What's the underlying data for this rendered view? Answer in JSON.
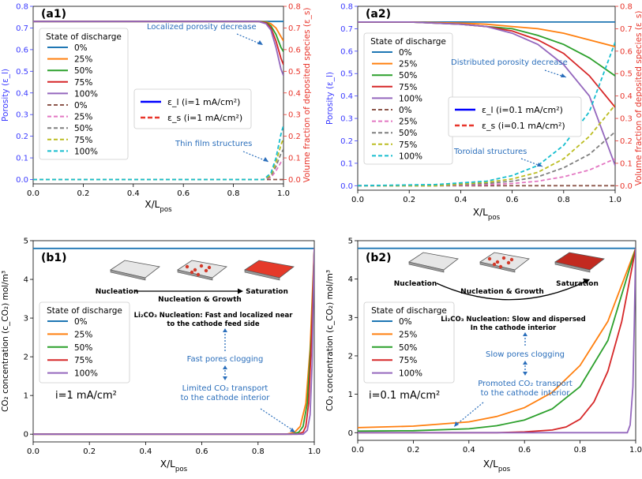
{
  "figure": {
    "x_label_main": "X/L",
    "x_label_sub": "pos",
    "x_ticks": [
      "0.0",
      "0.2",
      "0.4",
      "0.6",
      "0.8",
      "1.0"
    ]
  },
  "chart_data": [
    {
      "id": "a1",
      "type": "line",
      "panel_label": "(a1)",
      "xlim": [
        0,
        1
      ],
      "ylim": [
        -0.02,
        0.8
      ],
      "y2lim": [
        -0.02,
        0.8
      ],
      "y_ticks": [
        "0.0",
        "0.1",
        "0.2",
        "0.3",
        "0.4",
        "0.5",
        "0.6",
        "0.7",
        "0.8"
      ],
      "y2_ticks": [
        "0.0",
        "0.1",
        "0.2",
        "0.3",
        "0.4",
        "0.5",
        "0.6",
        "0.7",
        "0.8"
      ],
      "ylabel": "Porosity (ε_l)",
      "y2label": "Volume fraction of deposited species (ε_s)",
      "legend_title": "State of discharge",
      "legend_labels": [
        "0%",
        "25%",
        "50%",
        "75%",
        "100%",
        "0%",
        "25%",
        "50%",
        "75%",
        "100%"
      ],
      "style_legend": [
        "ε_l (i=1 mA/cm²)",
        "ε_s (i=1 mA/cm²)"
      ],
      "annotations": [
        "Localized porosity decrease",
        "Thin film structures"
      ],
      "series": [
        {
          "name": "0%",
          "style": "solid",
          "color": "#1f77b4",
          "x": [
            0,
            1
          ],
          "y": [
            0.73,
            0.73
          ]
        },
        {
          "name": "25%",
          "style": "solid",
          "color": "#ff7f0e",
          "x": [
            0,
            0.9,
            0.93,
            0.95,
            0.97,
            0.99,
            1.0
          ],
          "y": [
            0.73,
            0.73,
            0.728,
            0.72,
            0.7,
            0.66,
            0.64
          ]
        },
        {
          "name": "50%",
          "style": "solid",
          "color": "#2ca02c",
          "x": [
            0,
            0.9,
            0.93,
            0.95,
            0.97,
            0.99,
            1.0
          ],
          "y": [
            0.73,
            0.73,
            0.726,
            0.71,
            0.67,
            0.61,
            0.59
          ]
        },
        {
          "name": "75%",
          "style": "solid",
          "color": "#d62728",
          "x": [
            0,
            0.9,
            0.93,
            0.95,
            0.97,
            0.99,
            1.0
          ],
          "y": [
            0.73,
            0.73,
            0.724,
            0.7,
            0.64,
            0.56,
            0.53
          ]
        },
        {
          "name": "100%",
          "style": "solid",
          "color": "#9467bd",
          "x": [
            0,
            0.9,
            0.93,
            0.95,
            0.97,
            0.99,
            1.0
          ],
          "y": [
            0.73,
            0.73,
            0.72,
            0.69,
            0.61,
            0.51,
            0.48
          ]
        },
        {
          "name": "0%",
          "style": "dashed",
          "color": "#8c564b",
          "x": [
            0,
            1
          ],
          "y": [
            0.0,
            0.0
          ]
        },
        {
          "name": "25%",
          "style": "dashed",
          "color": "#e377c2",
          "x": [
            0,
            0.92,
            0.95,
            0.97,
            0.99,
            1.0
          ],
          "y": [
            0.0,
            0.0,
            0.01,
            0.04,
            0.08,
            0.09
          ]
        },
        {
          "name": "50%",
          "style": "dashed",
          "color": "#7f7f7f",
          "x": [
            0,
            0.92,
            0.95,
            0.97,
            0.99,
            1.0
          ],
          "y": [
            0.0,
            0.0,
            0.015,
            0.06,
            0.12,
            0.14
          ]
        },
        {
          "name": "75%",
          "style": "dashed",
          "color": "#bcbd22",
          "x": [
            0,
            0.92,
            0.95,
            0.97,
            0.99,
            1.0
          ],
          "y": [
            0.0,
            0.0,
            0.02,
            0.08,
            0.16,
            0.19
          ]
        },
        {
          "name": "100%",
          "style": "dashed",
          "color": "#17becf",
          "x": [
            0,
            0.92,
            0.95,
            0.97,
            0.99,
            1.0
          ],
          "y": [
            0.0,
            0.0,
            0.03,
            0.1,
            0.21,
            0.25
          ]
        }
      ]
    },
    {
      "id": "a2",
      "type": "line",
      "panel_label": "(a2)",
      "xlim": [
        0,
        1
      ],
      "ylim": [
        -0.02,
        0.8
      ],
      "y2lim": [
        -0.02,
        0.8
      ],
      "y_ticks": [
        "0.0",
        "0.1",
        "0.2",
        "0.3",
        "0.4",
        "0.5",
        "0.6",
        "0.7",
        "0.8"
      ],
      "y2_ticks": [
        "0.0",
        "0.1",
        "0.2",
        "0.3",
        "0.4",
        "0.5",
        "0.6",
        "0.7",
        "0.8"
      ],
      "ylabel": "Porosity (ε_l)",
      "y2label": "Volume fraction of deposited species (ε_s)",
      "legend_title": "State of discharge",
      "legend_labels": [
        "0%",
        "25%",
        "50%",
        "75%",
        "100%",
        "0%",
        "25%",
        "50%",
        "75%",
        "100%"
      ],
      "style_legend": [
        "ε_l (i=0.1 mA/cm²)",
        "ε_s (i=0.1 mA/cm²)"
      ],
      "annotations": [
        "Distributed porosity decrease",
        "Toroidal structures"
      ],
      "series": [
        {
          "name": "0%",
          "style": "solid",
          "color": "#1f77b4",
          "x": [
            0,
            1
          ],
          "y": [
            0.73,
            0.73
          ]
        },
        {
          "name": "25%",
          "style": "solid",
          "color": "#ff7f0e",
          "x": [
            0,
            0.2,
            0.4,
            0.5,
            0.6,
            0.7,
            0.8,
            0.9,
            1.0
          ],
          "y": [
            0.73,
            0.73,
            0.725,
            0.72,
            0.71,
            0.7,
            0.68,
            0.65,
            0.62
          ]
        },
        {
          "name": "50%",
          "style": "solid",
          "color": "#2ca02c",
          "x": [
            0,
            0.2,
            0.4,
            0.5,
            0.6,
            0.7,
            0.8,
            0.9,
            1.0
          ],
          "y": [
            0.73,
            0.73,
            0.72,
            0.71,
            0.7,
            0.67,
            0.63,
            0.57,
            0.49
          ]
        },
        {
          "name": "75%",
          "style": "solid",
          "color": "#d62728",
          "x": [
            0,
            0.2,
            0.4,
            0.5,
            0.6,
            0.7,
            0.8,
            0.9,
            1.0
          ],
          "y": [
            0.73,
            0.73,
            0.72,
            0.71,
            0.69,
            0.65,
            0.59,
            0.49,
            0.35
          ]
        },
        {
          "name": "100%",
          "style": "solid",
          "color": "#9467bd",
          "x": [
            0,
            0.2,
            0.4,
            0.5,
            0.6,
            0.7,
            0.8,
            0.9,
            1.0
          ],
          "y": [
            0.73,
            0.73,
            0.72,
            0.71,
            0.68,
            0.63,
            0.54,
            0.4,
            0.09
          ]
        },
        {
          "name": "0%",
          "style": "dashed",
          "color": "#8c564b",
          "x": [
            0,
            1
          ],
          "y": [
            0.0,
            0.0
          ]
        },
        {
          "name": "25%",
          "style": "dashed",
          "color": "#e377c2",
          "x": [
            0,
            0.3,
            0.5,
            0.6,
            0.7,
            0.8,
            0.9,
            1.0
          ],
          "y": [
            0.0,
            0.0,
            0.005,
            0.01,
            0.02,
            0.04,
            0.07,
            0.12
          ]
        },
        {
          "name": "50%",
          "style": "dashed",
          "color": "#7f7f7f",
          "x": [
            0,
            0.3,
            0.5,
            0.6,
            0.7,
            0.8,
            0.9,
            1.0
          ],
          "y": [
            0.0,
            0.0,
            0.01,
            0.02,
            0.04,
            0.08,
            0.14,
            0.24
          ]
        },
        {
          "name": "75%",
          "style": "dashed",
          "color": "#bcbd22",
          "x": [
            0,
            0.3,
            0.5,
            0.6,
            0.7,
            0.8,
            0.9,
            1.0
          ],
          "y": [
            0.0,
            0.0,
            0.015,
            0.03,
            0.06,
            0.12,
            0.22,
            0.36
          ]
        },
        {
          "name": "100%",
          "style": "dashed",
          "color": "#17becf",
          "x": [
            0,
            0.3,
            0.5,
            0.6,
            0.7,
            0.8,
            0.9,
            1.0
          ],
          "y": [
            0.0,
            0.005,
            0.02,
            0.045,
            0.09,
            0.18,
            0.33,
            0.64
          ]
        }
      ]
    },
    {
      "id": "b1",
      "type": "line",
      "panel_label": "(b1)",
      "xlim": [
        0,
        1
      ],
      "ylim": [
        -0.2,
        5
      ],
      "y_ticks": [
        "0",
        "1",
        "2",
        "3",
        "4",
        "5"
      ],
      "ylabel": "CO₂ concentration (c_CO₂) mol/m³",
      "legend_title": "State of discharge",
      "legend_labels": [
        "0%",
        "25%",
        "50%",
        "75%",
        "100%"
      ],
      "current_label": "i=1 mA/cm²",
      "schematic": {
        "steps": [
          "Nucleation",
          "Nucleation & Growth",
          "Saturation"
        ],
        "caption": "Li₂CO₃ Nucleation: Fast and localized near to the cathode feed side",
        "step2": "Fast pores clogging",
        "step3": "Limited CO₂ transport to the cathode interior"
      },
      "series": [
        {
          "name": "0%",
          "color": "#1f77b4",
          "x": [
            0,
            1
          ],
          "y": [
            4.8,
            4.8
          ]
        },
        {
          "name": "25%",
          "color": "#ff7f0e",
          "x": [
            0,
            0.9,
            0.93,
            0.95,
            0.97,
            0.985,
            1.0
          ],
          "y": [
            0.0,
            0.0,
            0.05,
            0.2,
            0.8,
            2.2,
            4.8
          ]
        },
        {
          "name": "50%",
          "color": "#2ca02c",
          "x": [
            0,
            0.92,
            0.945,
            0.96,
            0.975,
            0.99,
            1.0
          ],
          "y": [
            0.0,
            0.0,
            0.05,
            0.2,
            0.8,
            2.6,
            4.8
          ]
        },
        {
          "name": "75%",
          "color": "#d62728",
          "x": [
            0,
            0.94,
            0.96,
            0.97,
            0.98,
            0.99,
            1.0
          ],
          "y": [
            0.0,
            0.0,
            0.05,
            0.2,
            0.8,
            2.4,
            4.8
          ]
        },
        {
          "name": "100%",
          "color": "#9467bd",
          "x": [
            0,
            0.96,
            0.975,
            0.985,
            0.992,
            1.0
          ],
          "y": [
            0.0,
            0.0,
            0.1,
            0.5,
            1.8,
            4.8
          ]
        }
      ]
    },
    {
      "id": "b2",
      "type": "line",
      "panel_label": "(b2)",
      "xlim": [
        0,
        1
      ],
      "ylim": [
        -0.2,
        5
      ],
      "y_ticks": [
        "0",
        "1",
        "2",
        "3",
        "4",
        "5"
      ],
      "ylabel": "CO₂ concentration (c_CO₂) mol/m³",
      "legend_title": "State of discharge",
      "legend_labels": [
        "0%",
        "25%",
        "50%",
        "75%",
        "100%"
      ],
      "current_label": "i=0.1 mA/cm²",
      "schematic": {
        "steps": [
          "Nucleation",
          "Nucleation & Growth",
          "Saturation"
        ],
        "caption": "Li₂CO₃ Nucleation: Slow and dispersed In the cathode interior",
        "step2": "Slow pores clogging",
        "step3": "Promoted CO₂ transport to the cathode interior"
      },
      "series": [
        {
          "name": "0%",
          "color": "#1f77b4",
          "x": [
            0,
            1
          ],
          "y": [
            4.8,
            4.8
          ]
        },
        {
          "name": "25%",
          "color": "#ff7f0e",
          "x": [
            0,
            0.2,
            0.4,
            0.5,
            0.6,
            0.7,
            0.8,
            0.9,
            1.0
          ],
          "y": [
            0.13,
            0.17,
            0.28,
            0.42,
            0.65,
            1.05,
            1.75,
            2.9,
            4.8
          ]
        },
        {
          "name": "50%",
          "color": "#2ca02c",
          "x": [
            0,
            0.2,
            0.4,
            0.5,
            0.6,
            0.7,
            0.8,
            0.9,
            1.0
          ],
          "y": [
            0.04,
            0.05,
            0.1,
            0.18,
            0.33,
            0.62,
            1.2,
            2.4,
            4.8
          ]
        },
        {
          "name": "75%",
          "color": "#d62728",
          "x": [
            0,
            0.5,
            0.6,
            0.7,
            0.75,
            0.8,
            0.85,
            0.9,
            0.95,
            1.0
          ],
          "y": [
            0.0,
            0.0,
            0.02,
            0.07,
            0.15,
            0.35,
            0.8,
            1.6,
            2.9,
            4.8
          ]
        },
        {
          "name": "100%",
          "color": "#9467bd",
          "x": [
            0,
            0.97,
            0.98,
            0.99,
            0.995,
            1.0
          ],
          "y": [
            0.0,
            0.0,
            0.2,
            1.2,
            2.8,
            4.8
          ]
        }
      ]
    }
  ]
}
